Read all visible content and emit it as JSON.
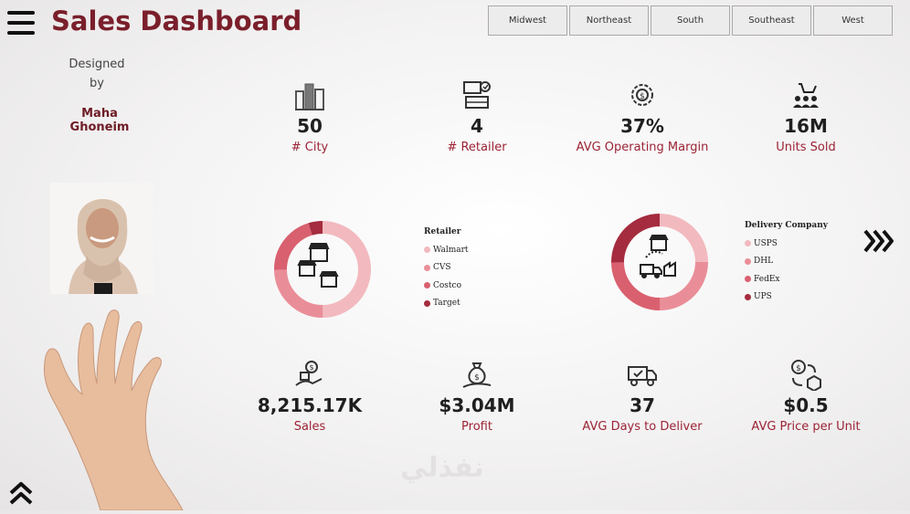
{
  "header": {
    "title": "Sales Dashboard",
    "regions": [
      "Midwest",
      "Northeast",
      "South",
      "Southeast",
      "West"
    ]
  },
  "credit": {
    "designed": "Designed",
    "by": "by",
    "author": "Maha Ghoneim"
  },
  "kpis_top": [
    {
      "value": "50",
      "label": "# City",
      "icon": "city-buildings-icon"
    },
    {
      "value": "4",
      "label": "# Retailer",
      "icon": "retailer-icon"
    },
    {
      "value": "37%",
      "label": "AVG Operating Margin",
      "icon": "margin-gear-icon"
    },
    {
      "value": "16M",
      "label": "Units Sold",
      "icon": "units-sold-icon"
    }
  ],
  "kpis_bottom": [
    {
      "value": "8,215.17K",
      "label": "Sales",
      "icon": "sales-icon"
    },
    {
      "value": "$3.04M",
      "label": "Profit",
      "icon": "profit-bag-icon"
    },
    {
      "value": "37",
      "label": "AVG Days to Deliver",
      "icon": "delivery-truck-icon"
    },
    {
      "value": "$0.5",
      "label": "AVG Price per Unit",
      "icon": "price-exchange-icon"
    }
  ],
  "retailer_chart": {
    "legend_title": "Retailer",
    "items": [
      {
        "name": "Walmart",
        "color": "#f2b9be"
      },
      {
        "name": "CVS",
        "color": "#e98e98"
      },
      {
        "name": "Costco",
        "color": "#d9606f"
      },
      {
        "name": "Target",
        "color": "#a42c3e"
      }
    ]
  },
  "delivery_chart": {
    "legend_title": "Delivery Company",
    "items": [
      {
        "name": "USPS",
        "color": "#f2b9be"
      },
      {
        "name": "DHL",
        "color": "#e98e98"
      },
      {
        "name": "FedEx",
        "color": "#d9606f"
      },
      {
        "name": "UPS",
        "color": "#a42c3e"
      }
    ]
  },
  "watermark": "نفذلي"
}
